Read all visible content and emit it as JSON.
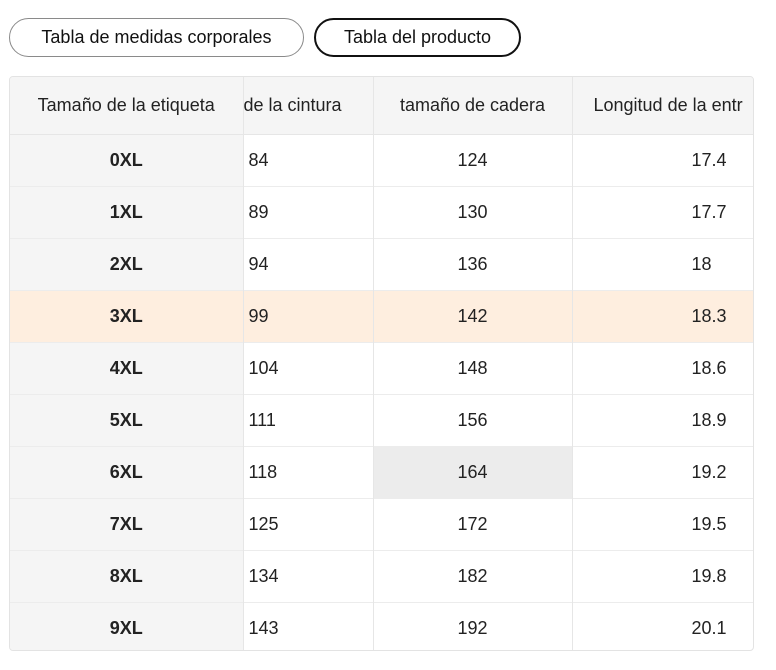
{
  "tabs": {
    "body": "Tabla de medidas corporales",
    "product": "Tabla del producto"
  },
  "table": {
    "headers": [
      "Tamaño de la etiqueta",
      "de la cintura",
      "tamaño de cadera",
      "Longitud de la entr"
    ],
    "rows": [
      [
        "0XL",
        "84",
        "124",
        "17.4"
      ],
      [
        "1XL",
        "89",
        "130",
        "17.7"
      ],
      [
        "2XL",
        "94",
        "136",
        "18"
      ],
      [
        "3XL",
        "99",
        "142",
        "18.3"
      ],
      [
        "4XL",
        "104",
        "148",
        "18.6"
      ],
      [
        "5XL",
        "111",
        "156",
        "18.9"
      ],
      [
        "6XL",
        "118",
        "164",
        "19.2"
      ],
      [
        "7XL",
        "125",
        "172",
        "19.5"
      ],
      [
        "8XL",
        "134",
        "182",
        "19.8"
      ],
      [
        "9XL",
        "143",
        "192",
        "20.1"
      ]
    ]
  },
  "colors": {
    "highlight_row": "#feeedf",
    "hover_cell": "#ececec",
    "header_bg": "#f5f5f5"
  }
}
